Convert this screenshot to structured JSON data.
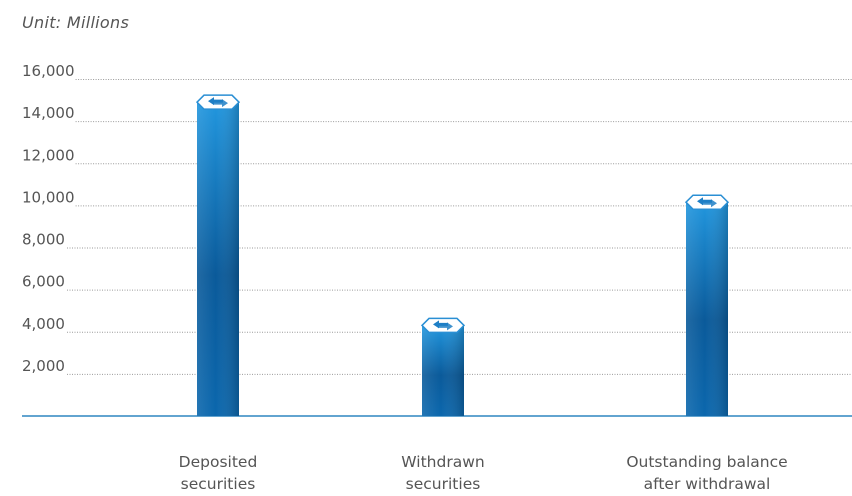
{
  "unit_label": "Unit: Millions",
  "colors": {
    "bar_light": "#2196de",
    "bar_dark": "#0a5a9a",
    "bar_mid": "#0b67ad",
    "axis": "#2e86c1",
    "grid": "#9a9a9a",
    "text": "#555555"
  },
  "chart_data": {
    "type": "bar",
    "categories": [
      [
        "Deposited",
        "securities"
      ],
      [
        "Withdrawn",
        "securities"
      ],
      [
        "Outstanding balance",
        "after withdrawal"
      ]
    ],
    "values": [
      14900,
      4300,
      10150
    ],
    "yticks": [
      "2,000",
      "4,000",
      "6,000",
      "8,000",
      "10,000",
      "12,000",
      "14,000",
      "16,000"
    ],
    "ylim": [
      0,
      16000
    ],
    "grid": true,
    "bar_icon": "exchange-arrows-icon"
  }
}
